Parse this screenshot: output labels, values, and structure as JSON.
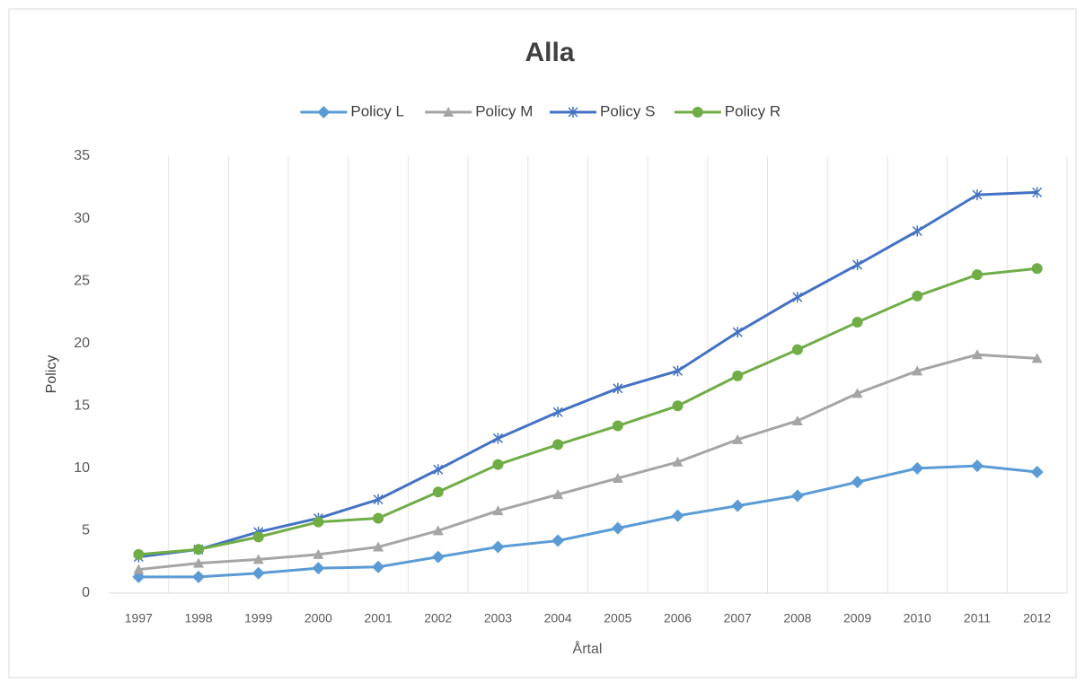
{
  "chart_data": {
    "type": "line",
    "title": "Alla",
    "x_label": "Årtal",
    "y_label": "Policy",
    "categories": [
      "1997",
      "1998",
      "1999",
      "2000",
      "2001",
      "2002",
      "2003",
      "2004",
      "2005",
      "2006",
      "2007",
      "2008",
      "2009",
      "2010",
      "2011",
      "2012"
    ],
    "series": [
      {
        "name": "Policy L",
        "color": "#5b9bd5",
        "marker": "diamond",
        "values": [
          1.3,
          1.3,
          1.6,
          2.0,
          2.1,
          2.9,
          3.7,
          4.2,
          5.2,
          6.2,
          7.0,
          7.8,
          8.9,
          10.0,
          10.2,
          9.7
        ]
      },
      {
        "name": "Policy M",
        "color": "#a5a5a5",
        "marker": "triangle",
        "values": [
          1.9,
          2.4,
          2.7,
          3.1,
          3.7,
          5.0,
          6.6,
          7.9,
          9.2,
          10.5,
          12.3,
          13.8,
          16.0,
          17.8,
          19.1,
          18.8
        ]
      },
      {
        "name": "Policy S",
        "color": "#4472c4",
        "marker": "star",
        "values": [
          2.9,
          3.5,
          4.9,
          6.0,
          7.5,
          9.9,
          12.4,
          14.5,
          16.4,
          17.8,
          20.9,
          23.7,
          26.3,
          29.0,
          31.9,
          32.1
        ]
      },
      {
        "name": "Policy R",
        "color": "#70ad47",
        "marker": "circle",
        "values": [
          3.1,
          3.5,
          4.5,
          5.7,
          6.0,
          8.1,
          10.3,
          11.9,
          13.4,
          15.0,
          17.4,
          19.5,
          21.7,
          23.8,
          25.5,
          26.0
        ]
      }
    ],
    "ylim": [
      0,
      35
    ],
    "yticks": [
      0,
      5,
      10,
      15,
      20,
      25,
      30,
      35
    ],
    "grid": "x",
    "legend": "top"
  }
}
